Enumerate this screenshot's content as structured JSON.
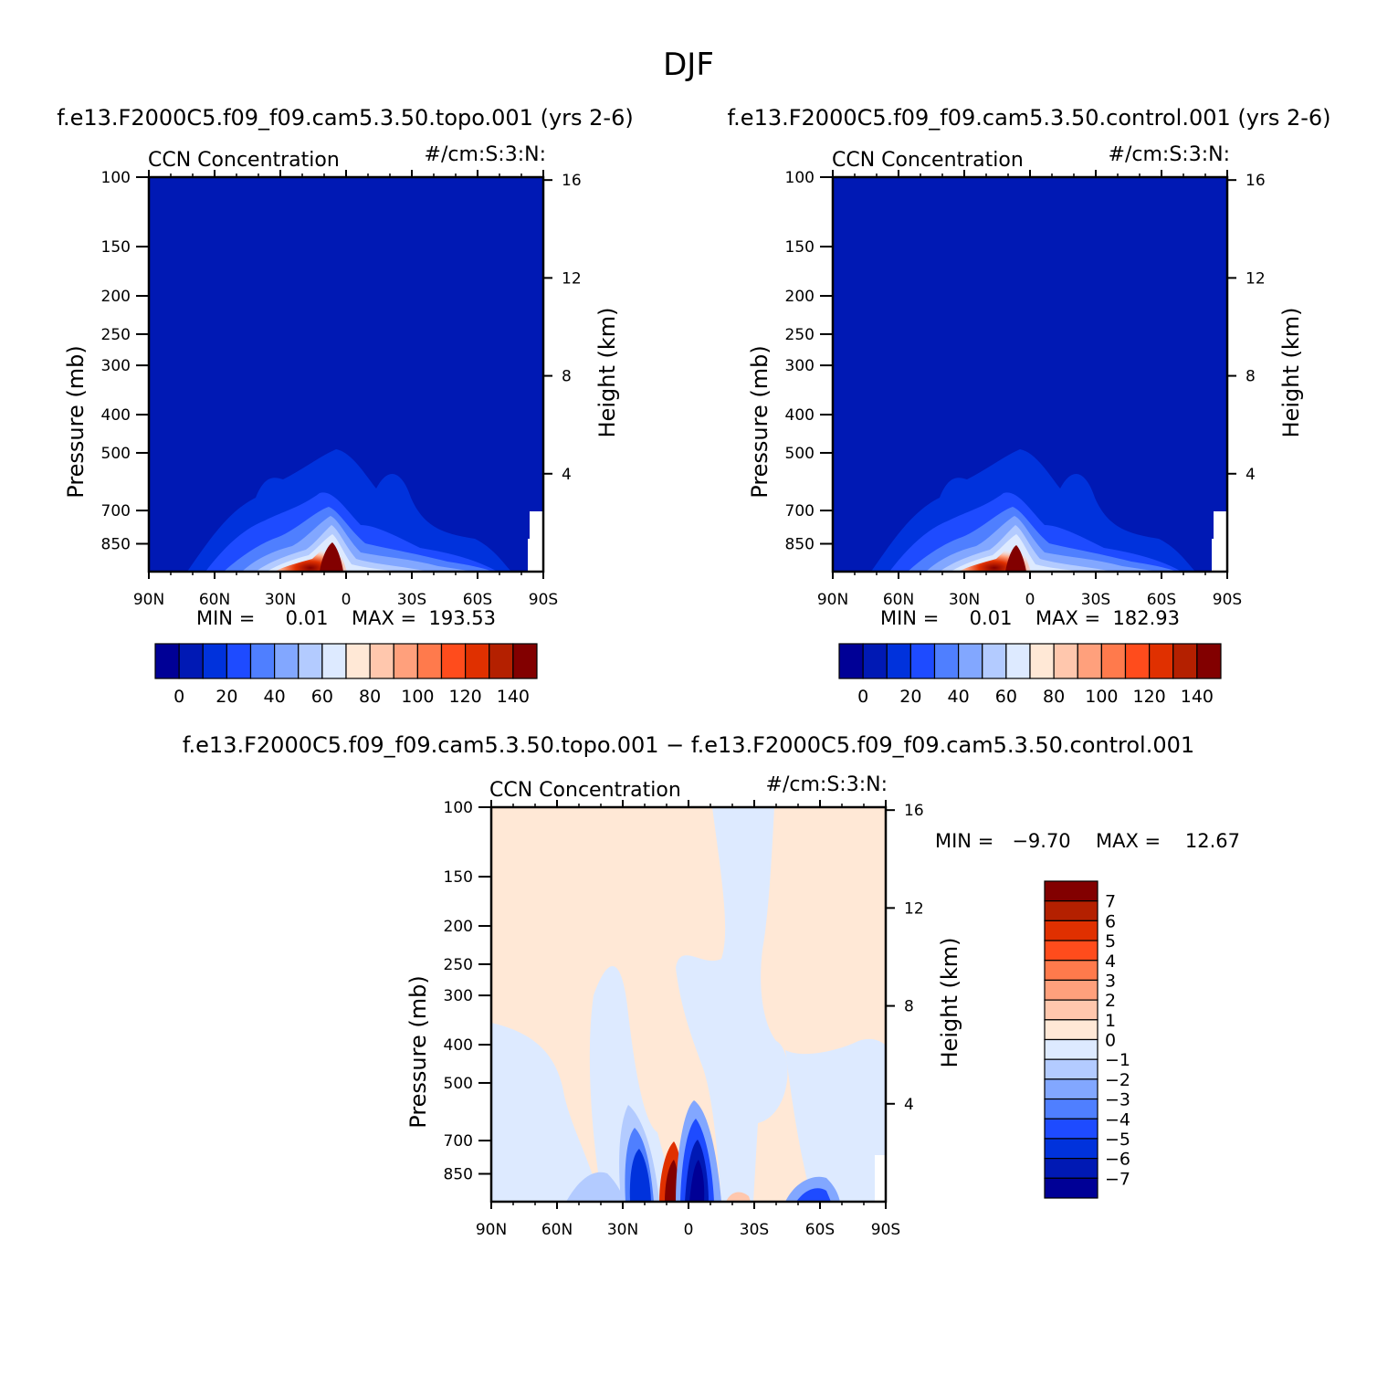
{
  "figure": {
    "title": "DJF"
  },
  "chart_data": [
    {
      "type": "heatmap",
      "case": "f.e13.F2000C5.f09_f09.cam5.3.50.topo.001  (yrs 2-6)",
      "variable": "CCN Concentration",
      "units": "#/cm:S:3:N:",
      "ylabel": "Pressure (mb)",
      "y2label": "Height (km)",
      "x_ticks": [
        "90N",
        "60N",
        "30N",
        "0",
        "30S",
        "60S",
        "90S"
      ],
      "y_ticks": [
        100,
        150,
        200,
        250,
        300,
        400,
        500,
        700,
        850
      ],
      "y2_ticks": [
        4,
        8,
        12,
        16
      ],
      "min_text": "MIN =     0.01",
      "max_text": "MAX =  193.53",
      "min": 0.01,
      "max": 193.53,
      "colorbar_labels": [
        "0",
        "20",
        "40",
        "60",
        "80",
        "100",
        "120",
        "140"
      ],
      "colorbar_colors": [
        "#000096",
        "#0019b4",
        "#0032dc",
        "#1e4bff",
        "#4f7fff",
        "#82a7ff",
        "#b3cbff",
        "#ddeaff",
        "#ffe8d6",
        "#ffc7ad",
        "#ffa07c",
        "#ff7a4c",
        "#ff4c1c",
        "#e03000",
        "#b42000",
        "#820000"
      ]
    },
    {
      "type": "heatmap",
      "case": "f.e13.F2000C5.f09_f09.cam5.3.50.control.001  (yrs 2-6)",
      "variable": "CCN Concentration",
      "units": "#/cm:S:3:N:",
      "ylabel": "Pressure (mb)",
      "y2label": "Height (km)",
      "x_ticks": [
        "90N",
        "60N",
        "30N",
        "0",
        "30S",
        "60S",
        "90S"
      ],
      "y_ticks": [
        100,
        150,
        200,
        250,
        300,
        400,
        500,
        700,
        850
      ],
      "y2_ticks": [
        4,
        8,
        12,
        16
      ],
      "min_text": "MIN =     0.01",
      "max_text": "MAX =  182.93",
      "min": 0.01,
      "max": 182.93,
      "colorbar_labels": [
        "0",
        "20",
        "40",
        "60",
        "80",
        "100",
        "120",
        "140"
      ],
      "colorbar_colors": [
        "#000096",
        "#0019b4",
        "#0032dc",
        "#1e4bff",
        "#4f7fff",
        "#82a7ff",
        "#b3cbff",
        "#ddeaff",
        "#ffe8d6",
        "#ffc7ad",
        "#ffa07c",
        "#ff7a4c",
        "#ff4c1c",
        "#e03000",
        "#b42000",
        "#820000"
      ]
    },
    {
      "type": "heatmap",
      "case": "f.e13.F2000C5.f09_f09.cam5.3.50.topo.001  −  f.e13.F2000C5.f09_f09.cam5.3.50.control.001",
      "variable": "CCN Concentration",
      "units": "#/cm:S:3:N:",
      "ylabel": "Pressure (mb)",
      "y2label": "Height (km)",
      "x_ticks": [
        "90N",
        "60N",
        "30N",
        "0",
        "30S",
        "60S",
        "90S"
      ],
      "y_ticks": [
        100,
        150,
        200,
        250,
        300,
        400,
        500,
        700,
        850
      ],
      "y2_ticks": [
        4,
        8,
        12,
        16
      ],
      "min_text": "MIN =   −9.70",
      "max_text": "MAX =    12.67",
      "min": -9.7,
      "max": 12.67,
      "colorbar_labels": [
        "7",
        "6",
        "5",
        "4",
        "3",
        "2",
        "1",
        "0",
        "−1",
        "−2",
        "−3",
        "−4",
        "−5",
        "−6",
        "−7"
      ],
      "colorbar_colors": [
        "#820000",
        "#b42000",
        "#e03000",
        "#ff4c1c",
        "#ff7a4c",
        "#ffa07c",
        "#ffc7ad",
        "#ffe8d6",
        "#ddeaff",
        "#b3cbff",
        "#82a7ff",
        "#4f7fff",
        "#1e4bff",
        "#0032dc",
        "#0019b4",
        "#000096"
      ]
    }
  ]
}
